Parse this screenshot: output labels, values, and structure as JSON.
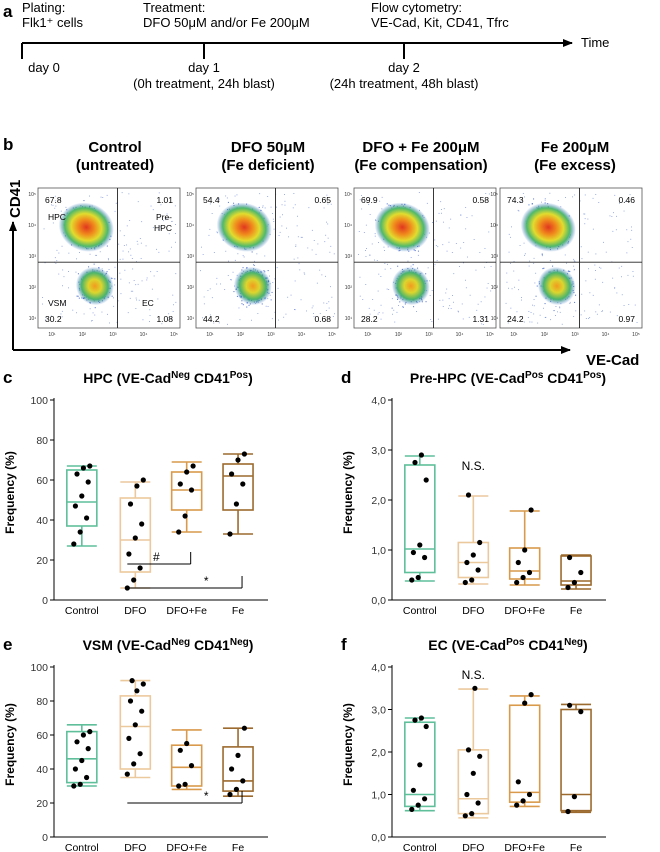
{
  "panels": {
    "a": "a",
    "b": "b",
    "c": "c",
    "d": "d",
    "e": "e",
    "f": "f"
  },
  "timeline": {
    "plating": [
      "Plating:",
      "Flk1⁺ cells"
    ],
    "treatment": [
      "Treatment:",
      "DFO 50μM and/or Fe 200μM"
    ],
    "flow": [
      "Flow cytometry:",
      "VE-Cad, Kit, CD41, Tfrc"
    ],
    "time_label": "Time",
    "days": [
      {
        "label": "day 0",
        "sub": ""
      },
      {
        "label": "day 1",
        "sub": "(0h treatment, 24h blast)"
      },
      {
        "label": "day 2",
        "sub": "(24h treatment, 48h blast)"
      }
    ]
  },
  "flow_plots": {
    "y_axis_label": "CD41",
    "x_axis_label": "VE-Cad",
    "tick_labels": [
      "10¹",
      "10²",
      "10³",
      "10⁴",
      "10⁵"
    ],
    "quadrant_names": {
      "hpc": "HPC",
      "pre_hpc": "Pre-HPC",
      "vsm": "VSM",
      "ec": "EC"
    },
    "conditions": [
      {
        "title": [
          "Control",
          "(untreated)"
        ],
        "ul": "67.8",
        "ur": "1.01",
        "ll": "30.2",
        "lr": "1.08"
      },
      {
        "title": [
          "DFO 50μM",
          "(Fe deficient)"
        ],
        "ul": "54.4",
        "ur": "0.65",
        "ll": "44.2",
        "lr": "0.68"
      },
      {
        "title": [
          "DFO + Fe 200μM",
          "(Fe compensation)"
        ],
        "ul": "69.9",
        "ur": "0.58",
        "ll": "28.2",
        "lr": "1.31"
      },
      {
        "title": [
          "Fe 200μM",
          "(Fe excess)"
        ],
        "ul": "74.3",
        "ur": "0.46",
        "ll": "24.2",
        "lr": "0.97"
      }
    ]
  },
  "colors": {
    "Control": "#5fbf9b",
    "DFO": "#ecc99d",
    "DFO+Fe": "#d99a4b",
    "Fe": "#9c6a2e"
  },
  "chart_data": [
    {
      "id": "c",
      "type": "box",
      "title": "HPC (VE-Cad",
      "title_sup1": "Neg",
      "title_mid": " CD41",
      "title_sup2": "Pos",
      "title_end": ")",
      "ylabel": "Frequency (%)",
      "ylim": [
        0,
        100
      ],
      "yticks": [
        "0",
        "20",
        "40",
        "60",
        "80",
        "100"
      ],
      "categories": [
        "Control",
        "DFO",
        "DFO+Fe",
        "Fe"
      ],
      "boxes": [
        {
          "min": 27,
          "q1": 37,
          "median": 49,
          "q3": 65,
          "max": 67
        },
        {
          "min": 6,
          "q1": 14,
          "median": 30,
          "q3": 51,
          "max": 59
        },
        {
          "min": 34,
          "q1": 45,
          "median": 55,
          "q3": 64,
          "max": 69
        },
        {
          "min": 33,
          "q1": 45,
          "median": 62,
          "q3": 68,
          "max": 73
        }
      ],
      "points": [
        [
          28,
          34,
          41,
          47,
          52,
          59,
          63,
          66,
          67
        ],
        [
          6,
          10,
          16,
          23,
          31,
          38,
          48,
          57,
          60
        ],
        [
          34,
          42,
          55,
          58,
          64,
          67
        ],
        [
          33,
          48,
          58,
          63,
          70,
          73
        ]
      ],
      "annotations": [
        {
          "text": "#",
          "from": 1,
          "to": 2,
          "y": 18,
          "value": 0.5
        },
        {
          "text": "*",
          "from": 1,
          "to": 3,
          "y": 6,
          "value": 1
        }
      ]
    },
    {
      "id": "d",
      "type": "box",
      "title": "Pre-HPC (VE-Cad",
      "title_sup1": "Pos",
      "title_mid": " CD41",
      "title_sup2": "Pos",
      "title_end": ")",
      "ylabel": "Frequency (%)",
      "ylim": [
        0,
        4
      ],
      "yticks": [
        "0,0",
        "1,0",
        "2,0",
        "3,0",
        "4,0"
      ],
      "categories": [
        "Control",
        "DFO",
        "DFO+Fe",
        "Fe"
      ],
      "boxes": [
        {
          "min": 0.38,
          "q1": 0.55,
          "median": 1.02,
          "q3": 2.7,
          "max": 2.88
        },
        {
          "min": 0.32,
          "q1": 0.45,
          "median": 0.75,
          "q3": 1.15,
          "max": 2.08
        },
        {
          "min": 0.3,
          "q1": 0.42,
          "median": 0.58,
          "q3": 1.04,
          "max": 1.78
        },
        {
          "min": 0.22,
          "q1": 0.3,
          "median": 0.38,
          "q3": 0.88,
          "max": 0.9
        }
      ],
      "points": [
        [
          0.4,
          0.45,
          0.85,
          0.95,
          1.1,
          2.4,
          2.75,
          2.9
        ],
        [
          0.35,
          0.4,
          0.6,
          0.75,
          0.9,
          1.15,
          2.1
        ],
        [
          0.35,
          0.45,
          0.55,
          0.75,
          1.0,
          1.8
        ],
        [
          0.25,
          0.35,
          0.55,
          0.85
        ]
      ],
      "annotations": [
        {
          "text": "N.S.",
          "at": 1,
          "yv": 2.6
        }
      ]
    },
    {
      "id": "e",
      "type": "box",
      "title": "VSM (VE-Cad",
      "title_sup1": "Neg",
      "title_mid": " CD41",
      "title_sup2": "Neg",
      "title_end": ")",
      "ylabel": "Frequency (%)",
      "ylim": [
        0,
        100
      ],
      "yticks": [
        "0",
        "20",
        "40",
        "60",
        "80",
        "100"
      ],
      "categories": [
        "Control",
        "DFO",
        "DFO+Fe",
        "Fe"
      ],
      "boxes": [
        {
          "min": 30,
          "q1": 32,
          "median": 46,
          "q3": 62,
          "max": 66
        },
        {
          "min": 35,
          "q1": 40,
          "median": 65,
          "q3": 83,
          "max": 92
        },
        {
          "min": 28,
          "q1": 30,
          "median": 41,
          "q3": 54,
          "max": 63
        },
        {
          "min": 24,
          "q1": 27,
          "median": 33,
          "q3": 53,
          "max": 64
        }
      ],
      "points": [
        [
          30,
          31,
          35,
          40,
          45,
          52,
          56,
          60,
          62
        ],
        [
          37,
          43,
          49,
          58,
          66,
          74,
          80,
          86,
          90,
          92
        ],
        [
          30,
          31,
          42,
          51,
          55
        ],
        [
          25,
          28,
          33,
          40,
          48,
          64
        ]
      ],
      "annotations": [
        {
          "text": "*",
          "from": 1,
          "to": 3,
          "y": 20,
          "value": 1
        }
      ]
    },
    {
      "id": "f",
      "type": "box",
      "title": "EC (VE-Cad",
      "title_sup1": "Pos",
      "title_mid": " CD41",
      "title_sup2": "Neg",
      "title_end": ")",
      "ylabel": "Frequency (%)",
      "ylim": [
        0,
        4
      ],
      "yticks": [
        "0,0",
        "1,0",
        "2,0",
        "3,0",
        "4,0"
      ],
      "categories": [
        "Control",
        "DFO",
        "DFO+Fe",
        "Fe"
      ],
      "boxes": [
        {
          "min": 0.62,
          "q1": 0.72,
          "median": 1.0,
          "q3": 2.7,
          "max": 2.8
        },
        {
          "min": 0.45,
          "q1": 0.55,
          "median": 0.9,
          "q3": 2.05,
          "max": 3.48
        },
        {
          "min": 0.72,
          "q1": 0.82,
          "median": 1.05,
          "q3": 3.1,
          "max": 3.32
        },
        {
          "min": 0.58,
          "q1": 0.62,
          "median": 1.0,
          "q3": 3.0,
          "max": 3.12
        }
      ],
      "points": [
        [
          0.65,
          0.75,
          0.9,
          1.1,
          1.7,
          2.6,
          2.75,
          2.8
        ],
        [
          0.5,
          0.55,
          0.8,
          1.0,
          1.5,
          1.9,
          2.05,
          3.5
        ],
        [
          0.75,
          0.85,
          1.0,
          1.3,
          3.15,
          3.35
        ],
        [
          0.6,
          0.95,
          2.95,
          3.1
        ]
      ],
      "annotations": [
        {
          "text": "N.S.",
          "at": 1,
          "yv": 3.72
        }
      ]
    }
  ]
}
